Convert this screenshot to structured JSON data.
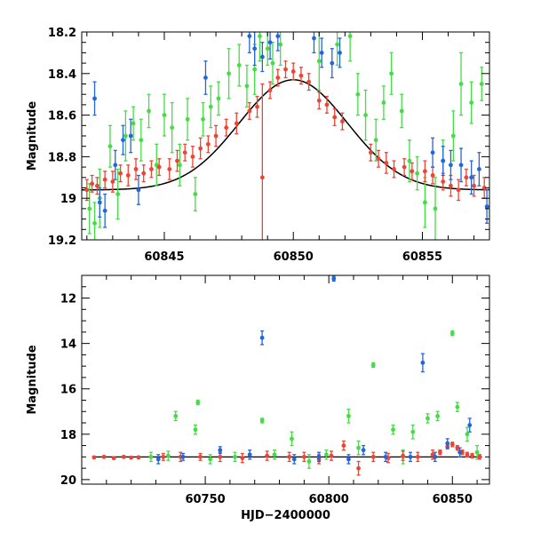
{
  "colors": {
    "red_series": "#ee4433",
    "green_series": "#44dd44",
    "blue_series": "#2266dd",
    "model_curve": "#000000"
  },
  "chart_data": [
    {
      "id": "top",
      "type": "scatter",
      "xlim": [
        60841.8,
        60857.6
      ],
      "ylim": [
        18.2,
        19.2
      ],
      "y_inverted": true,
      "xticks": [
        60845,
        60850,
        60855
      ],
      "yticks": [
        18.2,
        18.4,
        18.6,
        18.8,
        19.0,
        19.2
      ],
      "ytick_labels": [
        "18.2",
        "18.4",
        "18.6",
        "18.8",
        "19",
        "19.2"
      ],
      "xlabel": "",
      "ylabel": "Magnitude",
      "model": {
        "type": "gaussian",
        "t0": 60850.0,
        "sigma": 2.1,
        "base": 18.96,
        "peak": 18.43
      },
      "series": [
        {
          "color_key": "red_series",
          "points": [
            [
              60842.0,
              18.96,
              0.05
            ],
            [
              60842.2,
              18.93,
              0.04
            ],
            [
              60842.4,
              18.94,
              0.04
            ],
            [
              60842.7,
              18.91,
              0.04
            ],
            [
              60843.0,
              18.92,
              0.05
            ],
            [
              60843.3,
              18.88,
              0.04
            ],
            [
              60843.6,
              18.89,
              0.05
            ],
            [
              60843.9,
              18.86,
              0.05
            ],
            [
              60844.2,
              18.88,
              0.04
            ],
            [
              60844.5,
              18.86,
              0.04
            ],
            [
              60844.8,
              18.85,
              0.04
            ],
            [
              60845.2,
              18.86,
              0.05
            ],
            [
              60845.5,
              18.82,
              0.05
            ],
            [
              60845.8,
              18.78,
              0.04
            ],
            [
              60846.1,
              18.8,
              0.05
            ],
            [
              60846.4,
              18.76,
              0.05
            ],
            [
              60846.7,
              18.74,
              0.04
            ],
            [
              60847.0,
              18.7,
              0.05
            ],
            [
              60847.4,
              18.66,
              0.04
            ],
            [
              60847.8,
              18.64,
              0.05
            ],
            [
              60848.3,
              18.58,
              0.04
            ],
            [
              60848.6,
              18.56,
              0.05
            ],
            [
              60848.8,
              18.9,
              0.45
            ],
            [
              60849.1,
              18.48,
              0.04
            ],
            [
              60849.4,
              18.42,
              0.04
            ],
            [
              60849.7,
              18.38,
              0.04
            ],
            [
              60850.0,
              18.39,
              0.04
            ],
            [
              60850.3,
              18.41,
              0.04
            ],
            [
              60850.6,
              18.44,
              0.04
            ],
            [
              60851.0,
              18.53,
              0.04
            ],
            [
              60851.3,
              18.55,
              0.04
            ],
            [
              60851.6,
              18.61,
              0.04
            ],
            [
              60851.9,
              18.63,
              0.04
            ],
            [
              60853.0,
              18.78,
              0.04
            ],
            [
              60853.3,
              18.81,
              0.04
            ],
            [
              60853.6,
              18.83,
              0.05
            ],
            [
              60853.9,
              18.86,
              0.04
            ],
            [
              60854.3,
              18.85,
              0.04
            ],
            [
              60854.6,
              18.87,
              0.04
            ],
            [
              60855.1,
              18.87,
              0.05
            ],
            [
              60855.4,
              18.89,
              0.04
            ],
            [
              60855.8,
              18.92,
              0.04
            ],
            [
              60856.1,
              18.94,
              0.05
            ],
            [
              60856.4,
              18.96,
              0.05
            ],
            [
              60856.7,
              18.9,
              0.04
            ],
            [
              60857.0,
              18.94,
              0.05
            ],
            [
              60857.4,
              18.95,
              0.05
            ]
          ]
        },
        {
          "color_key": "green_series",
          "points": [
            [
              60842.1,
              19.05,
              0.12
            ],
            [
              60842.3,
              19.12,
              0.1
            ],
            [
              60842.5,
              19.0,
              0.14
            ],
            [
              60842.9,
              18.75,
              0.1
            ],
            [
              60843.2,
              18.98,
              0.12
            ],
            [
              60843.5,
              18.7,
              0.12
            ],
            [
              60843.8,
              18.64,
              0.08
            ],
            [
              60844.1,
              18.72,
              0.1
            ],
            [
              60844.4,
              18.58,
              0.08
            ],
            [
              60844.7,
              18.84,
              0.1
            ],
            [
              60845.0,
              18.6,
              0.1
            ],
            [
              60845.3,
              18.66,
              0.12
            ],
            [
              60845.6,
              18.84,
              0.1
            ],
            [
              60845.9,
              18.62,
              0.1
            ],
            [
              60846.2,
              18.98,
              0.08
            ],
            [
              60846.5,
              18.62,
              0.08
            ],
            [
              60846.8,
              18.56,
              0.1
            ],
            [
              60847.1,
              18.52,
              0.08
            ],
            [
              60847.5,
              18.4,
              0.12
            ],
            [
              60847.9,
              18.36,
              0.1
            ],
            [
              60848.2,
              18.46,
              0.1
            ],
            [
              60848.5,
              18.38,
              0.12
            ],
            [
              60848.7,
              18.22,
              0.12
            ],
            [
              60849.0,
              18.28,
              0.08
            ],
            [
              60849.2,
              18.35,
              0.1
            ],
            [
              60849.5,
              18.26,
              0.1
            ],
            [
              60851.0,
              18.34,
              0.14
            ],
            [
              60851.7,
              18.26,
              0.1
            ],
            [
              60852.2,
              18.22,
              0.12
            ],
            [
              60852.5,
              18.5,
              0.1
            ],
            [
              60852.8,
              18.6,
              0.12
            ],
            [
              60853.2,
              18.72,
              0.1
            ],
            [
              60853.5,
              18.54,
              0.08
            ],
            [
              60853.8,
              18.4,
              0.1
            ],
            [
              60854.2,
              18.58,
              0.08
            ],
            [
              60854.5,
              18.82,
              0.1
            ],
            [
              60854.8,
              18.88,
              0.08
            ],
            [
              60855.1,
              19.02,
              0.12
            ],
            [
              60855.5,
              19.05,
              0.15
            ],
            [
              60855.8,
              18.82,
              0.1
            ],
            [
              60856.2,
              18.7,
              0.12
            ],
            [
              60856.5,
              18.45,
              0.15
            ],
            [
              60856.9,
              18.54,
              0.1
            ],
            [
              60857.3,
              18.45,
              0.08
            ]
          ]
        },
        {
          "color_key": "blue_series",
          "points": [
            [
              60842.3,
              18.52,
              0.08
            ],
            [
              60842.5,
              19.02,
              0.07
            ],
            [
              60842.7,
              19.06,
              0.08
            ],
            [
              60843.1,
              18.84,
              0.07
            ],
            [
              60843.4,
              18.72,
              0.07
            ],
            [
              60843.7,
              18.7,
              0.08
            ],
            [
              60844.0,
              18.96,
              0.07
            ],
            [
              60846.6,
              18.42,
              0.08
            ],
            [
              60848.3,
              18.22,
              0.08
            ],
            [
              60848.5,
              18.28,
              0.08
            ],
            [
              60848.8,
              18.32,
              0.07
            ],
            [
              60849.1,
              18.25,
              0.08
            ],
            [
              60849.4,
              18.22,
              0.07
            ],
            [
              60850.8,
              18.23,
              0.07
            ],
            [
              60851.1,
              18.3,
              0.07
            ],
            [
              60851.5,
              18.35,
              0.07
            ],
            [
              60851.8,
              18.3,
              0.07
            ],
            [
              60855.4,
              18.78,
              0.07
            ],
            [
              60855.8,
              18.82,
              0.07
            ],
            [
              60856.1,
              18.84,
              0.07
            ],
            [
              60856.5,
              18.84,
              0.08
            ],
            [
              60856.9,
              18.9,
              0.08
            ],
            [
              60857.2,
              18.86,
              0.08
            ],
            [
              60857.5,
              19.04,
              0.08
            ]
          ]
        }
      ]
    },
    {
      "id": "bottom",
      "type": "scatter",
      "xlim": [
        60700,
        60865
      ],
      "ylim": [
        11,
        20.2
      ],
      "y_inverted": true,
      "xticks": [
        60750,
        60800,
        60850
      ],
      "yticks": [
        12,
        14,
        16,
        18,
        20
      ],
      "ytick_labels": [
        "12",
        "14",
        "16",
        "18",
        "20"
      ],
      "xlabel": "HJD−2400000",
      "ylabel": "Magnitude",
      "baseline": {
        "x": [
          60705,
          60862
        ],
        "y": 19.0
      },
      "series": [
        {
          "color_key": "red_series",
          "points": [
            [
              60705,
              19.02,
              0.05
            ],
            [
              60709,
              19.0,
              0.05
            ],
            [
              60713,
              19.05,
              0.05
            ],
            [
              60717,
              19.0,
              0.05
            ],
            [
              60720,
              19.03,
              0.05
            ],
            [
              60723,
              19.02,
              0.05
            ],
            [
              60733,
              19.0,
              0.15
            ],
            [
              60740,
              19.0,
              0.2
            ],
            [
              60748,
              19.0,
              0.15
            ],
            [
              60756,
              19.0,
              0.2
            ],
            [
              60765,
              19.05,
              0.2
            ],
            [
              60775,
              18.95,
              0.2
            ],
            [
              60784,
              19.0,
              0.2
            ],
            [
              60790,
              19.0,
              0.2
            ],
            [
              60796,
              19.1,
              0.2
            ],
            [
              60801,
              18.95,
              0.2
            ],
            [
              60806,
              18.5,
              0.2
            ],
            [
              60812,
              19.5,
              0.3
            ],
            [
              60818,
              19.0,
              0.2
            ],
            [
              60824,
              19.05,
              0.2
            ],
            [
              60830,
              18.95,
              0.2
            ],
            [
              60836,
              19.0,
              0.2
            ],
            [
              60842,
              18.9,
              0.2
            ],
            [
              60845,
              18.8,
              0.1
            ],
            [
              60848,
              18.55,
              0.1
            ],
            [
              60850,
              18.45,
              0.1
            ],
            [
              60852,
              18.6,
              0.1
            ],
            [
              60854,
              18.8,
              0.1
            ],
            [
              60856,
              18.9,
              0.1
            ],
            [
              60858,
              18.95,
              0.1
            ],
            [
              60861,
              19.0,
              0.1
            ]
          ]
        },
        {
          "color_key": "green_series",
          "points": [
            [
              60728,
              19.0,
              0.2
            ],
            [
              60735,
              18.95,
              0.2
            ],
            [
              60738,
              17.2,
              0.2
            ],
            [
              60746,
              17.8,
              0.2
            ],
            [
              60747,
              16.6,
              0.1
            ],
            [
              60752,
              19.1,
              0.2
            ],
            [
              60762,
              19.0,
              0.2
            ],
            [
              60773,
              17.4,
              0.1
            ],
            [
              60778,
              18.9,
              0.2
            ],
            [
              60785,
              18.2,
              0.3
            ],
            [
              60792,
              19.2,
              0.3
            ],
            [
              60799,
              18.9,
              0.2
            ],
            [
              60808,
              17.2,
              0.3
            ],
            [
              60812,
              18.6,
              0.3
            ],
            [
              60818,
              14.95,
              0.1
            ],
            [
              60826,
              17.8,
              0.2
            ],
            [
              60830,
              19.0,
              0.3
            ],
            [
              60834,
              17.9,
              0.3
            ],
            [
              60840,
              17.3,
              0.2
            ],
            [
              60844,
              17.2,
              0.2
            ],
            [
              60850,
              13.55,
              0.1
            ],
            [
              60852,
              16.8,
              0.2
            ],
            [
              60856,
              18.0,
              0.3
            ],
            [
              60860,
              18.8,
              0.3
            ]
          ]
        },
        {
          "color_key": "blue_series",
          "points": [
            [
              60731,
              19.1,
              0.2
            ],
            [
              60741,
              19.0,
              0.15
            ],
            [
              60756,
              18.7,
              0.15
            ],
            [
              60768,
              18.9,
              0.2
            ],
            [
              60773,
              13.75,
              0.3
            ],
            [
              60786,
              19.1,
              0.2
            ],
            [
              60796,
              19.0,
              0.2
            ],
            [
              60802,
              11.15,
              0.1
            ],
            [
              60808,
              19.1,
              0.2
            ],
            [
              60814,
              18.7,
              0.2
            ],
            [
              60823,
              19.0,
              0.2
            ],
            [
              60833,
              19.0,
              0.2
            ],
            [
              60838,
              14.85,
              0.4
            ],
            [
              60843,
              19.0,
              0.2
            ],
            [
              60848,
              18.4,
              0.2
            ],
            [
              60853,
              18.8,
              0.2
            ],
            [
              60857,
              17.6,
              0.3
            ]
          ]
        }
      ]
    }
  ]
}
